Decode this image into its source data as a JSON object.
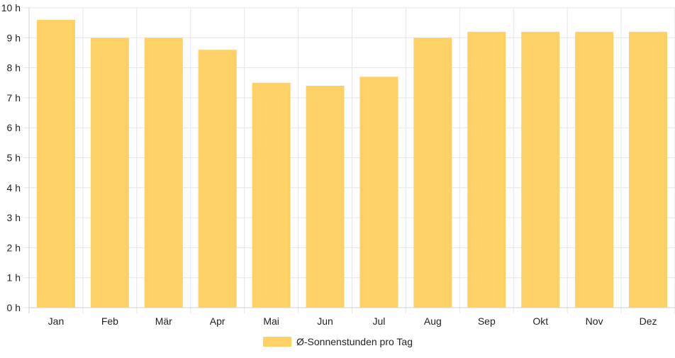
{
  "chart_data": {
    "type": "bar",
    "categories": [
      "Jan",
      "Feb",
      "Mär",
      "Apr",
      "Mai",
      "Jun",
      "Jul",
      "Aug",
      "Sep",
      "Okt",
      "Nov",
      "Dez"
    ],
    "series": [
      {
        "name": "Ø-Sonnenstunden pro Tag",
        "values": [
          9.6,
          9.0,
          9.0,
          8.6,
          7.5,
          7.4,
          7.7,
          9.0,
          9.2,
          9.2,
          9.2,
          9.2
        ],
        "color": "#fdd166"
      }
    ],
    "yticks": [
      "0 h",
      "1 h",
      "2 h",
      "3 h",
      "4 h",
      "5 h",
      "6 h",
      "7 h",
      "8 h",
      "9 h",
      "10 h"
    ],
    "ylim": [
      0,
      10
    ],
    "grid": true,
    "legend": "bottom",
    "title": "",
    "xlabel": "",
    "ylabel": ""
  }
}
